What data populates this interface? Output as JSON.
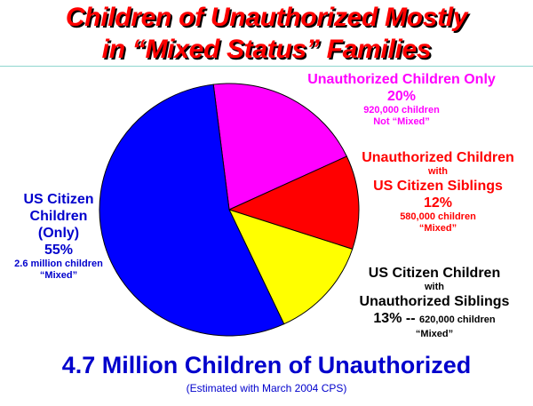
{
  "title_line1": "Children of Unauthorized Mostly",
  "title_line2": "in “Mixed Status” Families",
  "subtitle": "4.7 Million Children of Unauthorized",
  "note": "(Estimated with March 2004 CPS)",
  "colors": {
    "title": "#ff0000",
    "us_citizen_only": "#0000ff",
    "unauthorized_only": "#ff00ff",
    "unauthorized_with_us_siblings": "#ff0000",
    "us_citizen_with_unauthorized_siblings": "#ffff00",
    "rule": "#8fd6cf"
  },
  "labels": {
    "unauth_only": {
      "line1": "Unauthorized Children Only",
      "pct": "20%",
      "count": "920,000 children",
      "status": "Not “Mixed”"
    },
    "unauth_sib": {
      "line1": "Unauthorized Children",
      "with": "with",
      "line2": "US Citizen Siblings",
      "pct": "12%",
      "count": "580,000 children",
      "status": "“Mixed”"
    },
    "us_only": {
      "line1": "US Citizen",
      "line2": "Children",
      "line3": "(Only)",
      "pct": "55%",
      "count": "2.6 million children",
      "status": "“Mixed”"
    },
    "us_sib": {
      "line1": "US Citizen Children",
      "with": "with",
      "line2": "Unauthorized Siblings",
      "pct_line": "13% --",
      "count": "620,000 children",
      "status": "“Mixed”"
    }
  },
  "chart_data": {
    "type": "pie",
    "unit": "%",
    "slices": [
      {
        "key": "unauthorized_only",
        "value": 20,
        "color": "#ff00ff"
      },
      {
        "key": "unauthorized_with_us_siblings",
        "value": 12,
        "color": "#ff0000"
      },
      {
        "key": "us_citizen_with_unauthorized_siblings",
        "value": 13,
        "color": "#ffff00"
      },
      {
        "key": "us_citizen_only",
        "value": 55,
        "color": "#0000ff"
      }
    ]
  }
}
